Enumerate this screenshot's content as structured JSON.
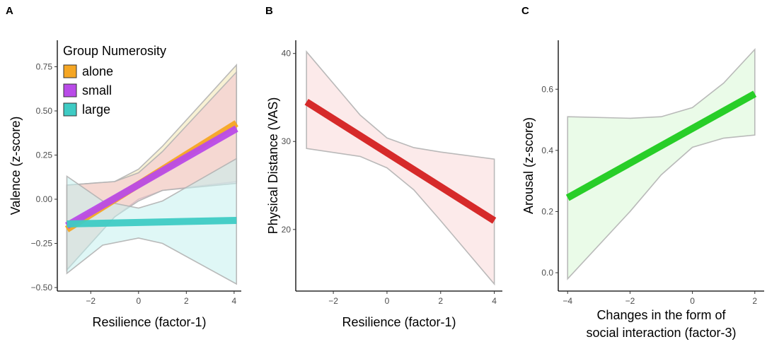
{
  "chart_data": [
    {
      "panel": "A",
      "type": "line",
      "xlabel": "Resilience (factor-1)",
      "ylabel": "Valence (z-score)",
      "xlim": [
        -3.4,
        4.3
      ],
      "ylim": [
        -0.52,
        0.9
      ],
      "xticks": [
        -2,
        0,
        2,
        4
      ],
      "yticks": [
        -0.5,
        -0.25,
        0,
        0.25,
        0.5,
        0.75
      ],
      "xtick_labels": [
        "−2",
        "0",
        "2",
        "4"
      ],
      "ytick_labels": [
        "−0.50",
        "−0.25",
        "0.00",
        "0.25",
        "0.50",
        "0.75"
      ],
      "legend": {
        "title": "Group Numerosity",
        "position": "top-left"
      },
      "series": [
        {
          "name": "alone",
          "color": "#f5a623",
          "band_color": "#f2e6b0",
          "x": [
            -3,
            4.1
          ],
          "y": [
            -0.17,
            0.43
          ],
          "band_x": [
            -3,
            -1,
            0,
            1,
            4.1
          ],
          "band_lower": [
            -0.4,
            -0.1,
            0.0,
            0.05,
            0.1
          ],
          "band_upper": [
            0.08,
            0.1,
            0.17,
            0.3,
            0.76
          ]
        },
        {
          "name": "small",
          "color": "#b94be8",
          "band_color": "#f3c3cf",
          "x": [
            -3,
            4.1
          ],
          "y": [
            -0.15,
            0.4
          ],
          "band_x": [
            -3,
            -1,
            0,
            1,
            4.1
          ],
          "band_lower": [
            -0.4,
            -0.1,
            -0.01,
            0.05,
            0.09
          ],
          "band_upper": [
            0.08,
            0.1,
            0.15,
            0.27,
            0.72
          ]
        },
        {
          "name": "large",
          "color": "#3ecbc4",
          "band_color": "#c5f0ee",
          "x": [
            -3,
            4.1
          ],
          "y": [
            -0.14,
            -0.12
          ],
          "band_x": [
            -3,
            -1.5,
            0,
            1,
            4.1
          ],
          "band_lower": [
            -0.42,
            -0.26,
            -0.22,
            -0.25,
            -0.48
          ],
          "band_upper": [
            0.13,
            -0.01,
            -0.05,
            -0.01,
            0.23
          ]
        }
      ]
    },
    {
      "panel": "B",
      "type": "line",
      "xlabel": "Resilience (factor-1)",
      "ylabel": "Physical Distance (VAS)",
      "xlim": [
        -3.4,
        4.3
      ],
      "ylim": [
        13.0,
        41.5
      ],
      "xticks": [
        -2,
        0,
        2,
        4
      ],
      "yticks": [
        20,
        30,
        40
      ],
      "xtick_labels": [
        "−2",
        "0",
        "2",
        "4"
      ],
      "ytick_labels": [
        "20",
        "30",
        "40"
      ],
      "series": [
        {
          "name": "",
          "color": "#d42020",
          "band_color": "#f9d9d9",
          "x": [
            -3,
            4
          ],
          "y": [
            34.5,
            21.0
          ],
          "band_x": [
            -3,
            -1,
            0,
            1,
            2,
            4
          ],
          "band_lower": [
            29.2,
            28.3,
            27.0,
            24.5,
            21.0,
            13.8
          ],
          "band_upper": [
            40.2,
            33.0,
            30.4,
            29.3,
            28.8,
            28.0
          ]
        }
      ]
    },
    {
      "panel": "C",
      "type": "line",
      "xlabel": "Changes in the form of social interaction (factor-3)",
      "xlabel_lines": [
        "Changes in the form of",
        "social interaction (factor-3)"
      ],
      "ylabel": "Arousal (z-score)",
      "xlim": [
        -4.3,
        2.3
      ],
      "ylim": [
        -0.06,
        0.76
      ],
      "xticks": [
        -4,
        -2,
        0,
        2
      ],
      "yticks": [
        0,
        0.2,
        0.4,
        0.6
      ],
      "xtick_labels": [
        "−4",
        "−2",
        "0",
        "2"
      ],
      "ytick_labels": [
        "0.0",
        "0.2",
        "0.4",
        "0.6"
      ],
      "series": [
        {
          "name": "",
          "color": "#1ecb1e",
          "band_color": "#d9f7d6",
          "x": [
            -4,
            2
          ],
          "y": [
            0.245,
            0.585
          ],
          "band_x": [
            -4,
            -2,
            -1,
            0,
            1,
            2
          ],
          "band_lower": [
            -0.02,
            0.2,
            0.32,
            0.41,
            0.44,
            0.45
          ],
          "band_upper": [
            0.51,
            0.505,
            0.51,
            0.54,
            0.62,
            0.73
          ]
        }
      ]
    }
  ]
}
